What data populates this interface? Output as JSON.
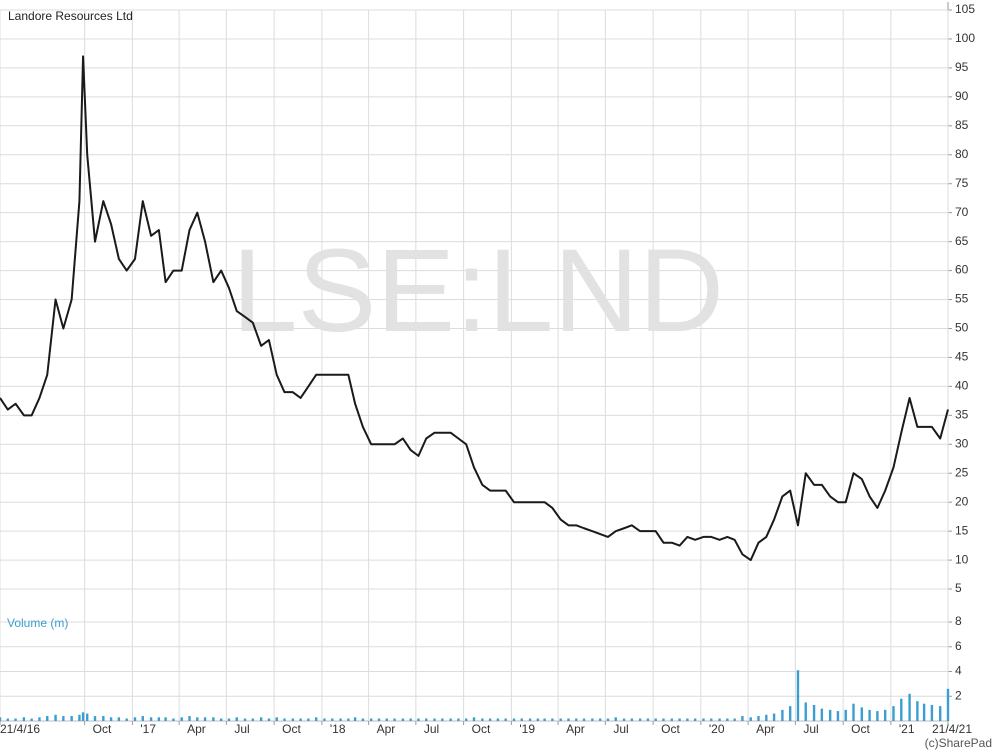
{
  "chart_data": {
    "type": "line",
    "title": "Landore Resources Ltd",
    "watermark": "LSE:LND",
    "credit": "(c)SharePad",
    "volume_label": "Volume (m)",
    "grid": true,
    "x": [
      "2016-04-21",
      "2016-05-06",
      "2016-05-21",
      "2016-06-06",
      "2016-06-21",
      "2016-07-06",
      "2016-07-21",
      "2016-08-06",
      "2016-08-21",
      "2016-09-06",
      "2016-09-21",
      "2016-09-28",
      "2016-10-06",
      "2016-10-21",
      "2016-11-06",
      "2016-11-21",
      "2016-12-06",
      "2016-12-21",
      "2017-01-06",
      "2017-01-21",
      "2017-02-06",
      "2017-02-21",
      "2017-03-06",
      "2017-03-21",
      "2017-04-06",
      "2017-04-21",
      "2017-05-06",
      "2017-05-21",
      "2017-06-06",
      "2017-06-21",
      "2017-07-06",
      "2017-07-21",
      "2017-08-06",
      "2017-08-21",
      "2017-09-06",
      "2017-09-21",
      "2017-10-06",
      "2017-10-21",
      "2017-11-06",
      "2017-11-21",
      "2017-12-06",
      "2017-12-21",
      "2018-01-06",
      "2018-01-21",
      "2018-02-06",
      "2018-02-21",
      "2018-03-06",
      "2018-03-21",
      "2018-04-06",
      "2018-04-21",
      "2018-05-06",
      "2018-05-21",
      "2018-06-06",
      "2018-06-21",
      "2018-07-06",
      "2018-07-21",
      "2018-08-06",
      "2018-08-21",
      "2018-09-06",
      "2018-09-21",
      "2018-10-06",
      "2018-10-21",
      "2018-11-06",
      "2018-11-21",
      "2018-12-06",
      "2018-12-21",
      "2019-01-06",
      "2019-01-21",
      "2019-02-06",
      "2019-02-21",
      "2019-03-06",
      "2019-03-21",
      "2019-04-06",
      "2019-04-21",
      "2019-05-06",
      "2019-05-21",
      "2019-06-06",
      "2019-06-21",
      "2019-07-06",
      "2019-07-21",
      "2019-08-06",
      "2019-08-21",
      "2019-09-06",
      "2019-09-21",
      "2019-10-06",
      "2019-10-21",
      "2019-11-06",
      "2019-11-21",
      "2019-12-06",
      "2019-12-21",
      "2020-01-06",
      "2020-01-21",
      "2020-02-06",
      "2020-02-21",
      "2020-03-06",
      "2020-03-21",
      "2020-04-06",
      "2020-04-21",
      "2020-05-06",
      "2020-05-21",
      "2020-06-06",
      "2020-06-21",
      "2020-07-06",
      "2020-07-21",
      "2020-08-06",
      "2020-08-21",
      "2020-09-06",
      "2020-09-21",
      "2020-10-06",
      "2020-10-21",
      "2020-11-06",
      "2020-11-21",
      "2020-12-06",
      "2020-12-21",
      "2021-01-06",
      "2021-01-21",
      "2021-02-06",
      "2021-02-21",
      "2021-03-06",
      "2021-03-21",
      "2021-04-06",
      "2021-04-21"
    ],
    "series": [
      {
        "color": "#1a1a1a",
        "values": [
          38,
          36,
          37,
          35,
          35,
          38,
          42,
          55,
          50,
          55,
          72,
          97,
          80,
          65,
          72,
          68,
          62,
          60,
          62,
          72,
          66,
          67,
          58,
          60,
          60,
          67,
          70,
          65,
          58,
          60,
          57,
          53,
          52,
          51,
          47,
          48,
          42,
          39,
          39,
          38,
          40,
          42,
          42,
          42,
          42,
          42,
          37,
          33,
          30,
          30,
          30,
          30,
          31,
          29,
          28,
          31,
          32,
          32,
          32,
          31,
          30,
          26,
          23,
          22,
          22,
          22,
          20,
          20,
          20,
          20,
          20,
          19,
          17,
          16,
          16,
          15.5,
          15,
          14.5,
          14,
          15,
          15.5,
          16,
          15,
          15,
          15,
          13,
          13,
          12.5,
          14,
          13.5,
          14,
          14,
          13.5,
          14,
          13.5,
          11,
          10,
          13,
          14,
          17,
          21,
          22,
          16,
          25,
          23,
          23,
          21,
          20,
          20,
          25,
          24,
          21,
          19,
          22,
          26,
          32,
          38,
          33,
          33,
          33,
          31,
          36
        ]
      },
      {
        "name": "Volume (m)",
        "type": "bar",
        "axis": "y2",
        "color": "#3a9fd0",
        "values": [
          0.3,
          0.2,
          0.2,
          0.3,
          0.2,
          0.3,
          0.4,
          0.5,
          0.4,
          0.4,
          0.5,
          0.7,
          0.6,
          0.4,
          0.4,
          0.3,
          0.3,
          0.2,
          0.3,
          0.4,
          0.3,
          0.3,
          0.3,
          0.2,
          0.3,
          0.4,
          0.3,
          0.3,
          0.3,
          0.2,
          0.2,
          0.3,
          0.2,
          0.2,
          0.3,
          0.2,
          0.3,
          0.2,
          0.2,
          0.2,
          0.2,
          0.3,
          0.2,
          0.2,
          0.2,
          0.2,
          0.3,
          0.2,
          0.2,
          0.2,
          0.2,
          0.2,
          0.2,
          0.2,
          0.2,
          0.2,
          0.2,
          0.2,
          0.2,
          0.2,
          0.2,
          0.3,
          0.2,
          0.2,
          0.2,
          0.2,
          0.2,
          0.2,
          0.2,
          0.2,
          0.2,
          0.2,
          0.2,
          0.2,
          0.2,
          0.2,
          0.2,
          0.2,
          0.2,
          0.3,
          0.2,
          0.2,
          0.2,
          0.2,
          0.2,
          0.2,
          0.2,
          0.2,
          0.2,
          0.2,
          0.2,
          0.2,
          0.2,
          0.2,
          0.2,
          0.4,
          0.3,
          0.4,
          0.5,
          0.6,
          0.9,
          1.2,
          4.1,
          1.5,
          1.3,
          1.0,
          0.9,
          0.8,
          0.9,
          1.4,
          1.1,
          0.9,
          0.8,
          0.9,
          1.2,
          1.8,
          2.2,
          1.6,
          1.4,
          1.3,
          1.2,
          2.6
        ]
      }
    ],
    "xlim": [
      "2016-04-21",
      "2021-04-21"
    ],
    "xticks": [
      {
        "value": "2016-04-21",
        "label": "21/4/16"
      },
      {
        "value": "2016-10-01",
        "label": "Oct"
      },
      {
        "value": "2017-01-01",
        "label": "'17"
      },
      {
        "value": "2017-04-01",
        "label": "Apr"
      },
      {
        "value": "2017-07-01",
        "label": "Jul"
      },
      {
        "value": "2017-10-01",
        "label": "Oct"
      },
      {
        "value": "2018-01-01",
        "label": "'18"
      },
      {
        "value": "2018-04-01",
        "label": "Apr"
      },
      {
        "value": "2018-07-01",
        "label": "Jul"
      },
      {
        "value": "2018-10-01",
        "label": "Oct"
      },
      {
        "value": "2019-01-01",
        "label": "'19"
      },
      {
        "value": "2019-04-01",
        "label": "Apr"
      },
      {
        "value": "2019-07-01",
        "label": "Jul"
      },
      {
        "value": "2019-10-01",
        "label": "Oct"
      },
      {
        "value": "2020-01-01",
        "label": "'20"
      },
      {
        "value": "2020-04-01",
        "label": "Apr"
      },
      {
        "value": "2020-07-01",
        "label": "Jul"
      },
      {
        "value": "2020-10-01",
        "label": "Oct"
      },
      {
        "value": "2021-01-01",
        "label": "'21"
      },
      {
        "value": "2021-04-21",
        "label": "21/4/21"
      }
    ],
    "ylim": [
      0,
      105
    ],
    "yticks": [
      5,
      10,
      15,
      20,
      25,
      30,
      35,
      40,
      45,
      50,
      55,
      60,
      65,
      70,
      75,
      80,
      85,
      90,
      95,
      100,
      105
    ],
    "y2lim": [
      0,
      8
    ],
    "y2ticks": [
      2,
      4,
      6,
      8
    ]
  }
}
